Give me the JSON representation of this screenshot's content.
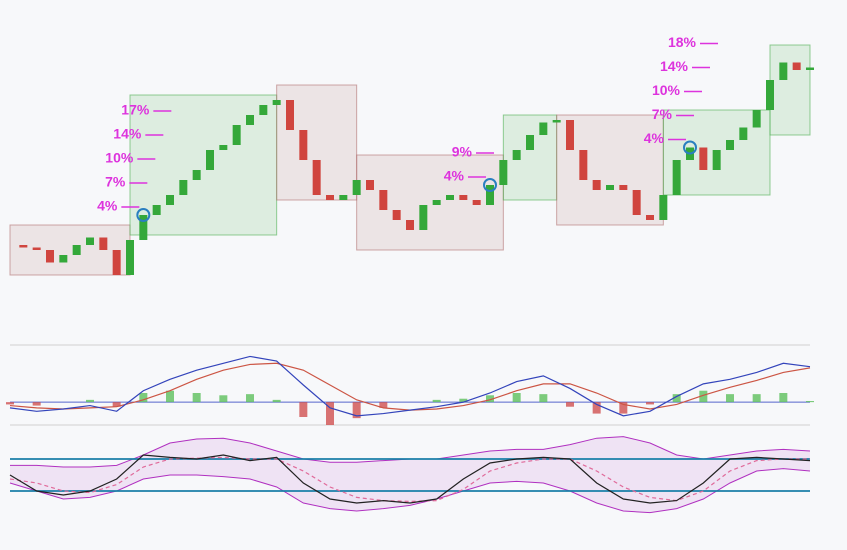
{
  "chart_data": [
    {
      "type": "candlestick",
      "ylim": [
        0,
        100
      ],
      "close": [
        18,
        17,
        16,
        11,
        14,
        18,
        21,
        16,
        6,
        20,
        30,
        34,
        38,
        44,
        48,
        56,
        58,
        66,
        70,
        74,
        76,
        64,
        52,
        38,
        36,
        38,
        44,
        40,
        32,
        28,
        24,
        34,
        36,
        38,
        36,
        34,
        42,
        52,
        56,
        62,
        67,
        68,
        56,
        44,
        40,
        42,
        40,
        30,
        28,
        38,
        52,
        57,
        48,
        56,
        60,
        65,
        72,
        84,
        91,
        88,
        89
      ],
      "up_color": "#34a83a",
      "down_color": "#d0453f",
      "zones": [
        {
          "from": 0,
          "to": 9,
          "low": 6,
          "high": 26,
          "color": "#b07070"
        },
        {
          "from": 9,
          "to": 20,
          "low": 22,
          "high": 78,
          "color": "#4caf50"
        },
        {
          "from": 20,
          "to": 26,
          "low": 36,
          "high": 82,
          "color": "#b07070"
        },
        {
          "from": 26,
          "to": 37,
          "low": 16,
          "high": 54,
          "color": "#b07070"
        },
        {
          "from": 37,
          "to": 41,
          "low": 36,
          "high": 70,
          "color": "#4caf50"
        },
        {
          "from": 41,
          "to": 49,
          "low": 26,
          "high": 70,
          "color": "#b07070"
        },
        {
          "from": 49,
          "to": 57,
          "low": 38,
          "high": 72,
          "color": "#4caf50"
        },
        {
          "from": 57,
          "to": 60,
          "low": 62,
          "high": 98,
          "color": "#4caf50"
        }
      ],
      "annotation_color": "#dd33dd",
      "annotations": [
        {
          "at": 10,
          "labels": [
            "4%",
            "7%",
            "10%",
            "14%",
            "17%"
          ]
        },
        {
          "at": 36,
          "labels": [
            "4%",
            "9%"
          ]
        },
        {
          "at": 51,
          "labels": [
            "4%",
            "7%",
            "10%",
            "14%",
            "18%"
          ]
        }
      ]
    },
    {
      "type": "macd",
      "ylim": [
        -2,
        5
      ],
      "macd": {
        "color": "#3344bb",
        "values": [
          -0.5,
          -0.8,
          -0.6,
          -0.3,
          -0.8,
          1,
          2,
          2.8,
          3.4,
          4,
          3.6,
          1.5,
          -0.5,
          -1.2,
          -1,
          -0.7,
          -0.4,
          0,
          0.8,
          1.8,
          2.3,
          1.2,
          -0.2,
          -1.2,
          -0.8,
          0.5,
          1.6,
          2,
          2.6,
          3.4,
          3.1
        ]
      },
      "signal": {
        "color": "#cc5544",
        "values": [
          -0.3,
          -0.5,
          -0.6,
          -0.5,
          -0.4,
          0.2,
          1,
          2,
          2.8,
          3.3,
          3.4,
          2.8,
          1.5,
          0.2,
          -0.5,
          -0.7,
          -0.6,
          -0.3,
          0.2,
          1,
          1.6,
          1.6,
          0.8,
          -0.2,
          -0.6,
          -0.2,
          0.6,
          1.3,
          1.9,
          2.6,
          3
        ]
      },
      "histogram": {
        "up_color": "#5cbf5c",
        "down_color": "#d05050",
        "values": [
          -0.2,
          -0.3,
          0,
          0.2,
          -0.4,
          0.8,
          1,
          0.8,
          0.6,
          0.7,
          0.2,
          -1.3,
          -2,
          -1.4,
          -0.5,
          0,
          0.2,
          0.3,
          0.6,
          0.8,
          0.7,
          -0.4,
          -1,
          -1,
          -0.2,
          0.7,
          1,
          0.7,
          0.7,
          0.8,
          0.1
        ]
      }
    },
    {
      "type": "oscillator",
      "ylim": [
        0,
        100
      ],
      "levels": [
        70,
        30
      ],
      "level_color": "#1a7fa8",
      "line": {
        "color": "#222222",
        "values": [
          50,
          30,
          25,
          30,
          45,
          75,
          72,
          70,
          75,
          68,
          72,
          40,
          20,
          15,
          18,
          15,
          20,
          45,
          65,
          70,
          72,
          70,
          40,
          20,
          15,
          18,
          40,
          70,
          72,
          70,
          68
        ]
      },
      "signal": {
        "color": "#e06a9a",
        "values": [
          45,
          40,
          30,
          28,
          38,
          60,
          70,
          71,
          72,
          70,
          70,
          55,
          35,
          22,
          18,
          17,
          18,
          32,
          55,
          65,
          70,
          70,
          55,
          35,
          22,
          18,
          30,
          55,
          68,
          70,
          70
        ]
      },
      "band": {
        "color": "#b030c0",
        "upper": [
          62,
          62,
          60,
          60,
          62,
          75,
          90,
          95,
          96,
          90,
          80,
          70,
          66,
          66,
          68,
          70,
          70,
          75,
          80,
          82,
          82,
          88,
          96,
          98,
          90,
          75,
          70,
          75,
          80,
          82,
          80
        ],
        "lower": [
          40,
          30,
          20,
          22,
          30,
          45,
          50,
          50,
          48,
          45,
          35,
          15,
          8,
          5,
          8,
          12,
          20,
          30,
          40,
          42,
          40,
          30,
          15,
          5,
          3,
          8,
          20,
          40,
          55,
          58,
          55
        ]
      }
    }
  ]
}
